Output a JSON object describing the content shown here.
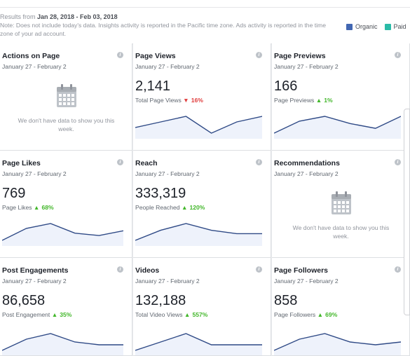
{
  "header": {
    "results_prefix": "Results from ",
    "results_range": "Jan 28, 2018 - Feb 03, 2018",
    "note": "Note: Does not include today's data. Insights activity is reported in the Pacific time zone. Ads activity is reported in the time zone of your ad account.",
    "legend": [
      {
        "label": "Organic",
        "color": "#4267b2"
      },
      {
        "label": "Paid",
        "color": "#2abba7"
      }
    ]
  },
  "cards": [
    {
      "title": "Actions on Page",
      "date": "January 27 - February 2",
      "empty": true,
      "empty_text": "We don't have data to show you this week."
    },
    {
      "title": "Page Views",
      "date": "January 27 - February 2",
      "value": "2,141",
      "label": "Total Page Views",
      "trend": "down",
      "pct": "16%",
      "spark": [
        8,
        6,
        4,
        10,
        6,
        4
      ]
    },
    {
      "title": "Page Previews",
      "date": "January 27 - February 2",
      "value": "166",
      "label": "Page Previews",
      "trend": "up",
      "pct": "1%",
      "spark": [
        9,
        4,
        2,
        5,
        7,
        2
      ]
    },
    {
      "title": "Page Likes",
      "date": "January 27 - February 2",
      "value": "769",
      "label": "Page Likes",
      "trend": "up",
      "pct": "68%",
      "spark": [
        9,
        4,
        2,
        6,
        7,
        5
      ]
    },
    {
      "title": "Reach",
      "date": "January 27 - February 2",
      "value": "333,319",
      "label": "People Reached",
      "trend": "up",
      "pct": "120%",
      "spark": [
        9,
        6,
        4,
        6,
        7,
        7
      ]
    },
    {
      "title": "Recommendations",
      "date": "January 27 - February 2",
      "empty": true,
      "empty_text": "We don't have data to show you this week."
    },
    {
      "title": "Post Engagements",
      "date": "January 27 - February 2",
      "value": "86,658",
      "label": "Post Engagement",
      "trend": "up",
      "pct": "35%",
      "spark": [
        9,
        5,
        3,
        6,
        7,
        7
      ]
    },
    {
      "title": "Videos",
      "date": "January 27 - February 2",
      "value": "132,188",
      "label": "Total Video Views",
      "trend": "up",
      "pct": "557%",
      "spark": [
        9,
        6,
        3,
        7,
        7,
        7
      ]
    },
    {
      "title": "Page Followers",
      "date": "January 27 - February 2",
      "value": "858",
      "label": "Page Followers",
      "trend": "up",
      "pct": "69%",
      "spark": [
        9,
        5,
        3,
        6,
        7,
        6
      ]
    }
  ]
}
